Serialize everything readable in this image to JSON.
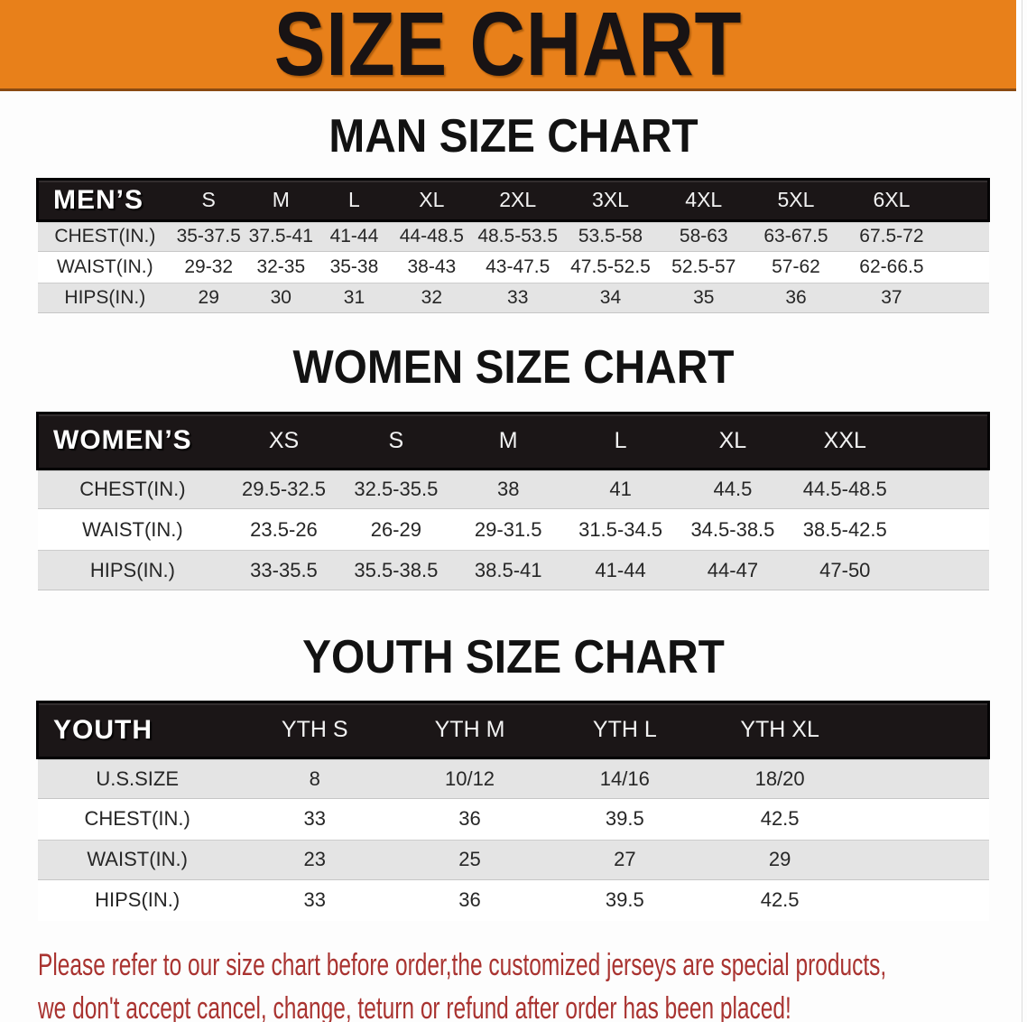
{
  "colors": {
    "banner_bg": "#E8801A",
    "header_bar": "#1B1617",
    "row_gray": "#E4E4E4",
    "note_red": "#A93330"
  },
  "banner": {
    "title": "SIZE CHART"
  },
  "sections": [
    {
      "heading": "MAN SIZE CHART",
      "table": {
        "header_label": "MEN’S",
        "columns": [
          "S",
          "M",
          "L",
          "XL",
          "2XL",
          "3XL",
          "4XL",
          "5XL",
          "6XL"
        ],
        "rows": [
          {
            "label": "CHEST(IN.)",
            "values": [
              "35-37.5",
              "37.5-41",
              "41-44",
              "44-48.5",
              "48.5-53.5",
              "53.5-58",
              "58-63",
              "63-67.5",
              "67.5-72"
            ]
          },
          {
            "label": "WAIST(IN.)",
            "values": [
              "29-32",
              "32-35",
              "35-38",
              "38-43",
              "43-47.5",
              "47.5-52.5",
              "52.5-57",
              "57-62",
              "62-66.5"
            ]
          },
          {
            "label": "HIPS(IN.)",
            "values": [
              "29",
              "30",
              "31",
              "32",
              "33",
              "34",
              "35",
              "36",
              "37"
            ]
          }
        ]
      }
    },
    {
      "heading": "WOMEN SIZE CHART",
      "table": {
        "header_label": "WOMEN’S",
        "columns": [
          "XS",
          "S",
          "M",
          "L",
          "XL",
          "XXL"
        ],
        "rows": [
          {
            "label": "CHEST(IN.)",
            "values": [
              "29.5-32.5",
              "32.5-35.5",
              "38",
              "41",
              "44.5",
              "44.5-48.5"
            ]
          },
          {
            "label": "WAIST(IN.)",
            "values": [
              "23.5-26",
              "26-29",
              "29-31.5",
              "31.5-34.5",
              "34.5-38.5",
              "38.5-42.5"
            ]
          },
          {
            "label": "HIPS(IN.)",
            "values": [
              "33-35.5",
              "35.5-38.5",
              "38.5-41",
              "41-44",
              "44-47",
              "47-50"
            ]
          }
        ]
      }
    },
    {
      "heading": "YOUTH SIZE CHART",
      "table": {
        "header_label": "YOUTH",
        "columns": [
          "YTH S",
          "YTH M",
          "YTH L",
          "YTH XL"
        ],
        "rows": [
          {
            "label": "U.S.SIZE",
            "values": [
              "8",
              "10/12",
              "14/16",
              "18/20"
            ]
          },
          {
            "label": "CHEST(IN.)",
            "values": [
              "33",
              "36",
              "39.5",
              "42.5"
            ]
          },
          {
            "label": "WAIST(IN.)",
            "values": [
              "23",
              "25",
              "27",
              "29"
            ]
          },
          {
            "label": "HIPS(IN.)",
            "values": [
              "33",
              "36",
              "39.5",
              "42.5"
            ]
          }
        ]
      }
    }
  ],
  "footer": {
    "line1": "Please refer to our size chart before order,the customized jerseys are special products,",
    "line2": "we don't accept cancel, change, teturn or refund after order has been placed!"
  }
}
